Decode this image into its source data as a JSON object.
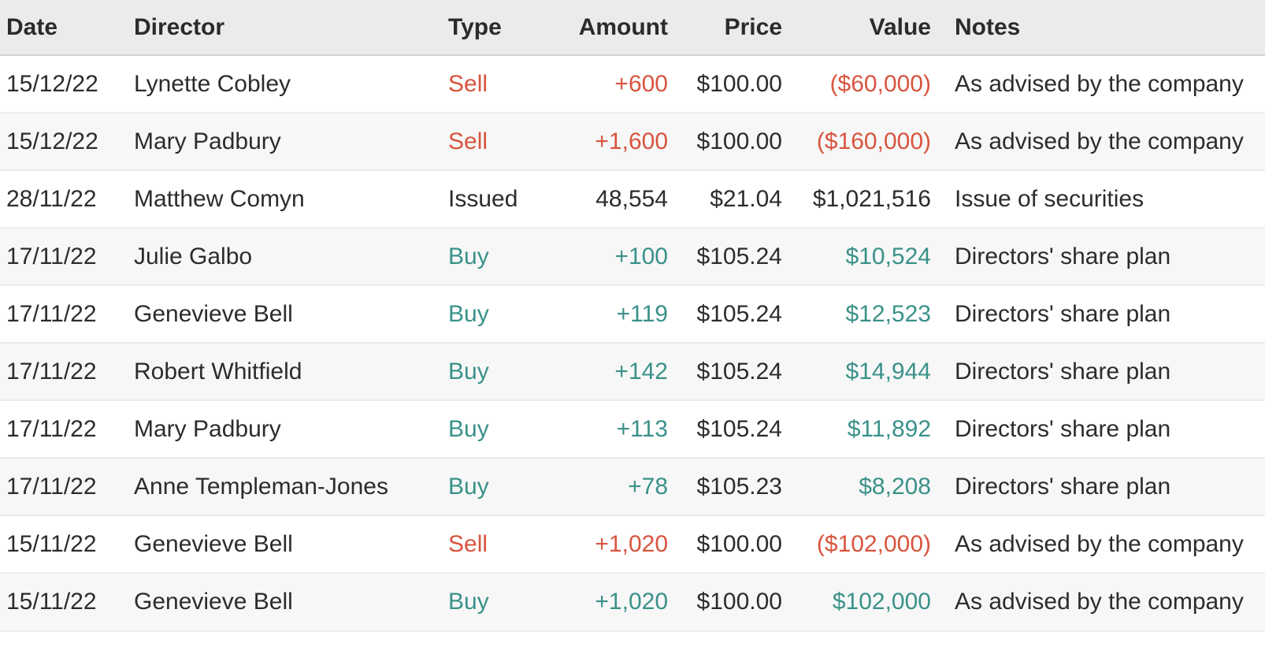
{
  "colors": {
    "sell": "#d8543e",
    "buy": "#3a9189",
    "neutral": "#2c2c2c",
    "header_bg": "#ebebeb",
    "stripe_bg": "#f7f7f7",
    "header_divider": "#d1d1d1",
    "row_divider": "#ececec"
  },
  "table": {
    "columns": [
      {
        "key": "date",
        "label": "Date",
        "align": "left"
      },
      {
        "key": "director",
        "label": "Director",
        "align": "left"
      },
      {
        "key": "type",
        "label": "Type",
        "align": "left"
      },
      {
        "key": "amount",
        "label": "Amount",
        "align": "right"
      },
      {
        "key": "price",
        "label": "Price",
        "align": "right"
      },
      {
        "key": "value",
        "label": "Value",
        "align": "right"
      },
      {
        "key": "notes",
        "label": "Notes",
        "align": "left"
      }
    ],
    "rows": [
      {
        "date": "15/12/22",
        "director": "Lynette Cobley",
        "type": "Sell",
        "amount": "+600",
        "price": "$100.00",
        "value": "($60,000)",
        "notes": "As advised by the company",
        "tone": "sell"
      },
      {
        "date": "15/12/22",
        "director": "Mary Padbury",
        "type": "Sell",
        "amount": "+1,600",
        "price": "$100.00",
        "value": "($160,000)",
        "notes": "As advised by the company",
        "tone": "sell"
      },
      {
        "date": "28/11/22",
        "director": "Matthew Comyn",
        "type": "Issued",
        "amount": "48,554",
        "price": "$21.04",
        "value": "$1,021,516",
        "notes": "Issue of securities",
        "tone": "neutral"
      },
      {
        "date": "17/11/22",
        "director": "Julie Galbo",
        "type": "Buy",
        "amount": "+100",
        "price": "$105.24",
        "value": "$10,524",
        "notes": "Directors' share plan",
        "tone": "buy"
      },
      {
        "date": "17/11/22",
        "director": "Genevieve Bell",
        "type": "Buy",
        "amount": "+119",
        "price": "$105.24",
        "value": "$12,523",
        "notes": "Directors' share plan",
        "tone": "buy"
      },
      {
        "date": "17/11/22",
        "director": "Robert Whitfield",
        "type": "Buy",
        "amount": "+142",
        "price": "$105.24",
        "value": "$14,944",
        "notes": "Directors' share plan",
        "tone": "buy"
      },
      {
        "date": "17/11/22",
        "director": "Mary Padbury",
        "type": "Buy",
        "amount": "+113",
        "price": "$105.24",
        "value": "$11,892",
        "notes": "Directors' share plan",
        "tone": "buy"
      },
      {
        "date": "17/11/22",
        "director": "Anne Templeman-Jones",
        "type": "Buy",
        "amount": "+78",
        "price": "$105.23",
        "value": "$8,208",
        "notes": "Directors' share plan",
        "tone": "buy"
      },
      {
        "date": "15/11/22",
        "director": "Genevieve Bell",
        "type": "Sell",
        "amount": "+1,020",
        "price": "$100.00",
        "value": "($102,000)",
        "notes": "As advised by the company",
        "tone": "sell"
      },
      {
        "date": "15/11/22",
        "director": "Genevieve Bell",
        "type": "Buy",
        "amount": "+1,020",
        "price": "$100.00",
        "value": "$102,000",
        "notes": "As advised by the company",
        "tone": "buy"
      }
    ]
  }
}
